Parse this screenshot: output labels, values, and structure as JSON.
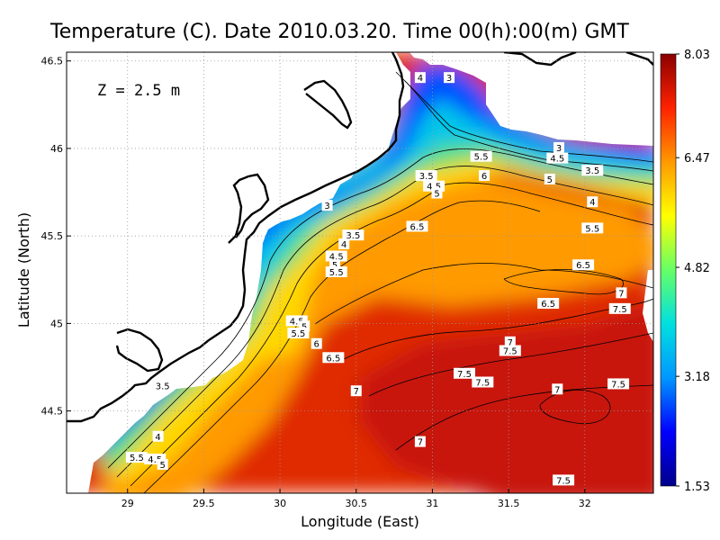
{
  "chart_data": {
    "type": "heatmap",
    "title": "Temperature (C). Date 2010.03.20. Time 00(h):00(m) GMT",
    "xlabel": "Longitude (East)",
    "ylabel": "Latitude (North)",
    "annotation": "Z = 2.5 m",
    "xlim": [
      28.6,
      32.45
    ],
    "ylim": [
      44.03,
      46.55
    ],
    "xticks": [
      "29",
      "29.5",
      "30",
      "30.5",
      "31",
      "31.5",
      "32"
    ],
    "yticks": [
      "44.5",
      "45",
      "45.5",
      "46",
      "46.5"
    ],
    "grid": true,
    "colorbar": {
      "ticks": [
        "1.53",
        "3.18",
        "4.82",
        "6.47",
        "8.03"
      ],
      "min": 1.53,
      "max": 8.03,
      "colors": [
        "#00008b",
        "#0000ff",
        "#0096ff",
        "#00e0e0",
        "#66ff66",
        "#ffff00",
        "#ff9900",
        "#ff2200",
        "#8b0000"
      ]
    },
    "contour_labels": [
      {
        "text": "4",
        "lon": 30.92,
        "lat": 46.4
      },
      {
        "text": "3",
        "lon": 31.11,
        "lat": 46.4
      },
      {
        "text": "3",
        "lon": 31.83,
        "lat": 46.0
      },
      {
        "text": "4.5",
        "lon": 31.82,
        "lat": 45.94
      },
      {
        "text": "3.5",
        "lon": 32.05,
        "lat": 45.87
      },
      {
        "text": "5.5",
        "lon": 31.32,
        "lat": 45.95
      },
      {
        "text": "6",
        "lon": 31.34,
        "lat": 45.84
      },
      {
        "text": "5",
        "lon": 31.77,
        "lat": 45.82
      },
      {
        "text": "3.5",
        "lon": 30.96,
        "lat": 45.84
      },
      {
        "text": "4.5",
        "lon": 31.01,
        "lat": 45.78
      },
      {
        "text": "5",
        "lon": 31.03,
        "lat": 45.74
      },
      {
        "text": "4",
        "lon": 32.05,
        "lat": 45.69
      },
      {
        "text": "5.5",
        "lon": 32.05,
        "lat": 45.54
      },
      {
        "text": "3",
        "lon": 30.31,
        "lat": 45.67
      },
      {
        "text": "6.5",
        "lon": 30.9,
        "lat": 45.55
      },
      {
        "text": "3.5",
        "lon": 30.48,
        "lat": 45.5
      },
      {
        "text": "4",
        "lon": 30.42,
        "lat": 45.45
      },
      {
        "text": "4.5",
        "lon": 30.37,
        "lat": 45.38
      },
      {
        "text": "5",
        "lon": 30.36,
        "lat": 45.33
      },
      {
        "text": "5.5",
        "lon": 30.37,
        "lat": 45.29
      },
      {
        "text": "6.5",
        "lon": 31.99,
        "lat": 45.33
      },
      {
        "text": "7",
        "lon": 32.24,
        "lat": 45.17
      },
      {
        "text": "6.5",
        "lon": 31.76,
        "lat": 45.11
      },
      {
        "text": "7.5",
        "lon": 32.23,
        "lat": 45.08
      },
      {
        "text": "4.5",
        "lon": 30.11,
        "lat": 45.01
      },
      {
        "text": "5",
        "lon": 30.16,
        "lat": 44.98
      },
      {
        "text": "5.5",
        "lon": 30.12,
        "lat": 44.94
      },
      {
        "text": "6",
        "lon": 30.24,
        "lat": 44.88
      },
      {
        "text": "6.5",
        "lon": 30.35,
        "lat": 44.8
      },
      {
        "text": "7",
        "lon": 31.51,
        "lat": 44.89
      },
      {
        "text": "7.5",
        "lon": 31.51,
        "lat": 44.84
      },
      {
        "text": "7.5",
        "lon": 31.21,
        "lat": 44.71
      },
      {
        "text": "7.5",
        "lon": 31.33,
        "lat": 44.66
      },
      {
        "text": "7",
        "lon": 30.5,
        "lat": 44.61
      },
      {
        "text": "7",
        "lon": 31.82,
        "lat": 44.62
      },
      {
        "text": "7.5",
        "lon": 32.22,
        "lat": 44.65
      },
      {
        "text": "3.5",
        "lon": 29.23,
        "lat": 44.64
      },
      {
        "text": "4",
        "lon": 29.2,
        "lat": 44.35
      },
      {
        "text": "7",
        "lon": 30.92,
        "lat": 44.32
      },
      {
        "text": "5.5",
        "lon": 29.06,
        "lat": 44.23
      },
      {
        "text": "4.5",
        "lon": 29.18,
        "lat": 44.22
      },
      {
        "text": "5",
        "lon": 29.23,
        "lat": 44.19
      },
      {
        "text": "7.5",
        "lon": 31.86,
        "lat": 44.1
      }
    ]
  }
}
